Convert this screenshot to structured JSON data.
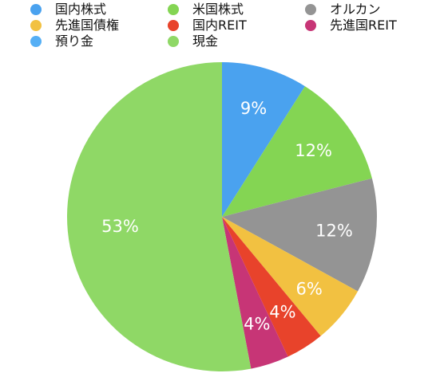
{
  "chart_data": {
    "type": "pie",
    "start": "12-o'clock",
    "direction": "clockwise",
    "legend_position": "top",
    "slices": [
      {
        "label": "国内株式",
        "value": 9,
        "value_label": "9%",
        "color": "#4aa2ef"
      },
      {
        "label": "米国株式",
        "value": 12,
        "value_label": "12%",
        "color": "#84d553"
      },
      {
        "label": "オルカン",
        "value": 12,
        "value_label": "12%",
        "color": "#949494"
      },
      {
        "label": "先進国債権",
        "value": 6,
        "value_label": "6%",
        "color": "#f2c141"
      },
      {
        "label": "国内REIT",
        "value": 4,
        "value_label": "4%",
        "color": "#e8432b"
      },
      {
        "label": "先進国REIT",
        "value": 4,
        "value_label": "4%",
        "color": "#c73576"
      },
      {
        "label": "預り金",
        "value": 0,
        "value_label": "",
        "color": "#55aff5"
      },
      {
        "label": "現金",
        "value": 53,
        "value_label": "53%",
        "color": "#8fd866"
      }
    ]
  }
}
